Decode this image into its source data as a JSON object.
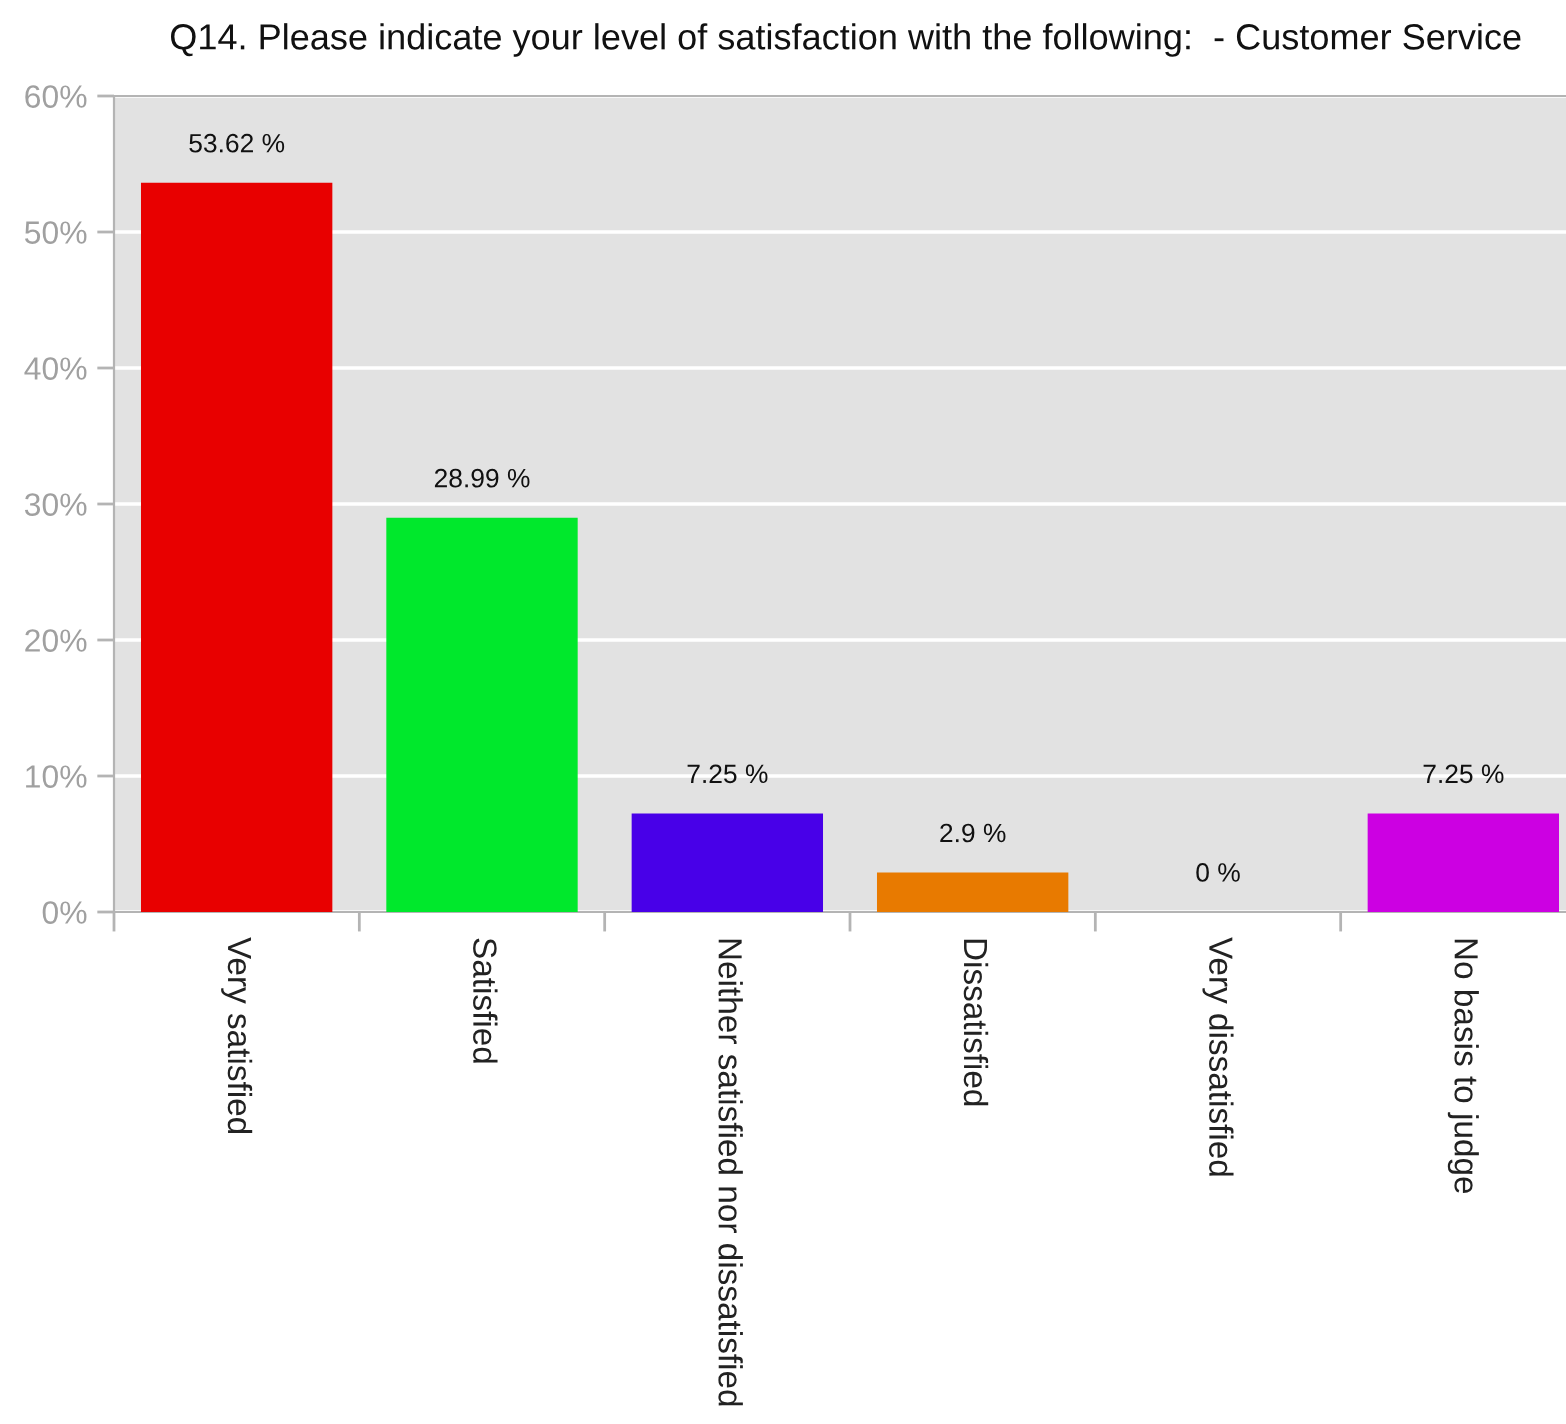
{
  "chart_data": {
    "type": "bar",
    "title": "Q14. Please indicate your level of satisfaction with the following:  - Customer Service",
    "categories": [
      "Very satisfied",
      "Satisfied",
      "Neither satisfied nor dissatisfied",
      "Dissatisfied",
      "Very dissatisfied",
      "No basis to judge"
    ],
    "values": [
      53.62,
      28.99,
      7.25,
      2.9,
      0,
      7.25
    ],
    "colors": [
      "#e80000",
      "#00e82c",
      "#4800e8",
      "#e87a00",
      "#b0b0b0",
      "#cc00e2"
    ],
    "value_labels": [
      "53.62 %",
      "28.99 %",
      "7.25 %",
      "2.9 %",
      "0 %",
      "7.25 %"
    ],
    "ylim": [
      0,
      60
    ],
    "yticks": [
      {
        "value": 0,
        "label": "0%"
      },
      {
        "value": 10,
        "label": "10%"
      },
      {
        "value": 20,
        "label": "20%"
      },
      {
        "value": 30,
        "label": "30%"
      },
      {
        "value": 40,
        "label": "40%"
      },
      {
        "value": 50,
        "label": "50%"
      },
      {
        "value": 60,
        "label": "60%"
      }
    ],
    "grid": "y"
  }
}
